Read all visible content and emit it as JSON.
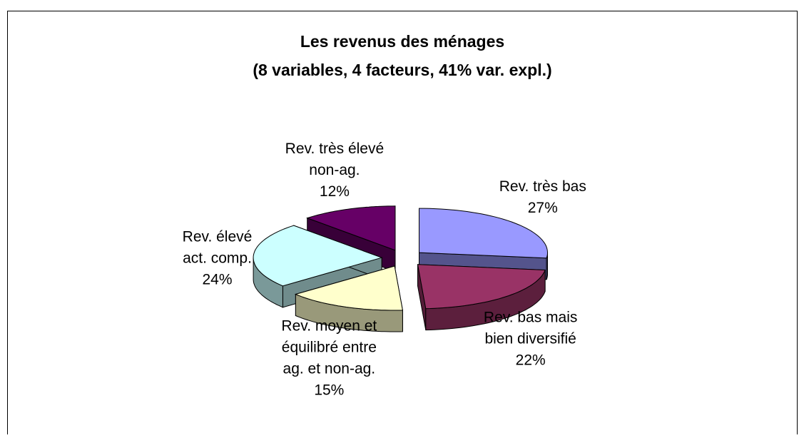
{
  "chart_data": {
    "type": "pie3d",
    "title": "Les revenus des ménages",
    "subtitle": "(8 variables, 4 facteurs, 41% var. expl.)",
    "categories": [
      [
        "Rev. très bas"
      ],
      [
        "Rev. bas mais",
        "bien diversifié"
      ],
      [
        "Rev. moyen et",
        "équilibré entre",
        "ag. et non-ag."
      ],
      [
        "Rev. élevé",
        "act. comp."
      ],
      [
        "Rev. très élevé",
        "non-ag."
      ]
    ],
    "values": [
      27,
      22,
      15,
      24,
      12
    ],
    "value_labels": [
      "27%",
      "22%",
      "15%",
      "24%",
      "12%"
    ],
    "colors": [
      "#9999ff",
      "#993366",
      "#ffffcc",
      "#ccffff",
      "#660066"
    ]
  }
}
